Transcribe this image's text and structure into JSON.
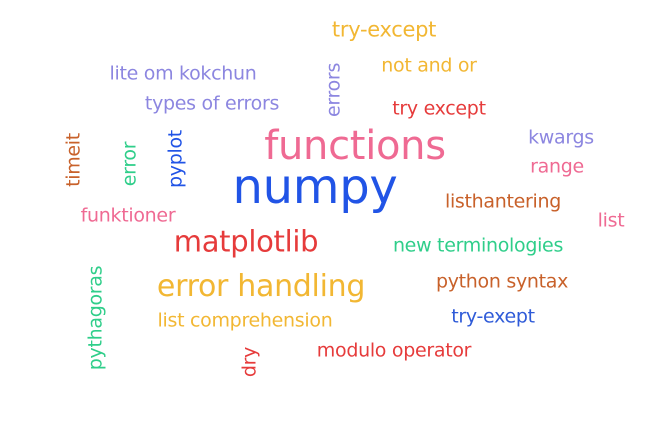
{
  "colors": {
    "orange": "#f2b733",
    "purple": "#8c86e0",
    "blue": "#2154e6",
    "red": "#e63b3b",
    "pink": "#ef6a93",
    "brown": "#c8612a",
    "green": "#2fce8a",
    "dark_blue": "#2f5bd8"
  },
  "words": [
    {
      "text": "numpy",
      "color": "blue",
      "weight": 10
    },
    {
      "text": "functions",
      "color": "pink",
      "weight": 7
    },
    {
      "text": "error handling",
      "color": "orange",
      "weight": 5
    },
    {
      "text": "matplotlib",
      "color": "red",
      "weight": 5
    },
    {
      "text": "try-except",
      "color": "orange",
      "weight": 3
    },
    {
      "text": "not and or",
      "color": "orange",
      "weight": 3
    },
    {
      "text": "lite om kokchun",
      "color": "purple",
      "weight": 3
    },
    {
      "text": "errors",
      "color": "purple",
      "weight": 3
    },
    {
      "text": "types of errors",
      "color": "purple",
      "weight": 3
    },
    {
      "text": "try except",
      "color": "red",
      "weight": 3
    },
    {
      "text": "kwargs",
      "color": "purple",
      "weight": 3
    },
    {
      "text": "range",
      "color": "pink",
      "weight": 3
    },
    {
      "text": "timeit",
      "color": "brown",
      "weight": 3
    },
    {
      "text": "error",
      "color": "green",
      "weight": 3
    },
    {
      "text": "pyplot",
      "color": "blue",
      "weight": 3
    },
    {
      "text": "listhantering",
      "color": "brown",
      "weight": 3
    },
    {
      "text": "list",
      "color": "pink",
      "weight": 3
    },
    {
      "text": "funktioner",
      "color": "pink",
      "weight": 3
    },
    {
      "text": "new terminologies",
      "color": "green",
      "weight": 3
    },
    {
      "text": "python syntax",
      "color": "brown",
      "weight": 3
    },
    {
      "text": "pythagoras",
      "color": "green",
      "weight": 3
    },
    {
      "text": "list comprehension",
      "color": "orange",
      "weight": 3
    },
    {
      "text": "try-exept",
      "color": "dark_blue",
      "weight": 3
    },
    {
      "text": "dry",
      "color": "red",
      "weight": 3
    },
    {
      "text": "modulo operator",
      "color": "red",
      "weight": 3
    }
  ]
}
